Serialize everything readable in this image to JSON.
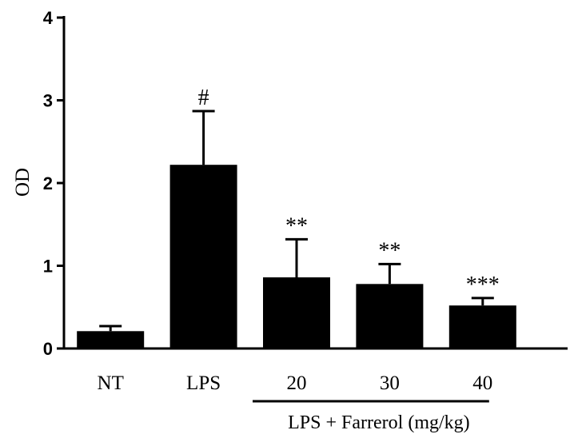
{
  "chart_data": {
    "type": "bar",
    "ylabel": "OD",
    "ylim": [
      0,
      4
    ],
    "yticks": [
      "0",
      "1",
      "2",
      "3",
      "4"
    ],
    "categories": [
      "NT",
      "LPS",
      "20",
      "30",
      "40"
    ],
    "values": [
      0.21,
      2.22,
      0.86,
      0.78,
      0.52
    ],
    "errors": [
      0.06,
      0.65,
      0.46,
      0.24,
      0.09
    ],
    "significance": [
      "",
      "#",
      "**",
      "**",
      "***"
    ],
    "group_label": "LPS + Farrerol (mg/kg)",
    "bar_color": "#000000",
    "grid": false,
    "legend": "none"
  }
}
